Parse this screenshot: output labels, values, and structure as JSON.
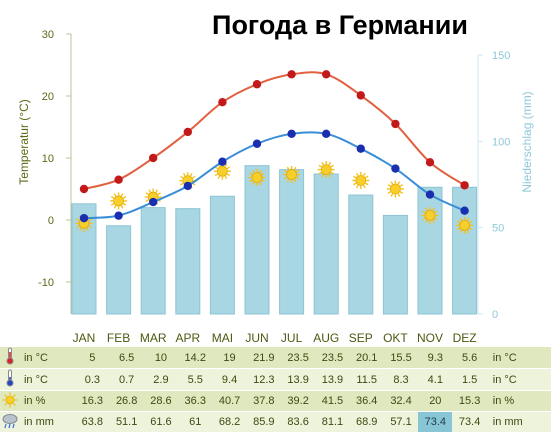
{
  "title": "Погода в Германии",
  "chart_data": {
    "type": "line",
    "title": "Погода в Германии",
    "categories": [
      "JAN",
      "FEB",
      "MAR",
      "APR",
      "MAI",
      "JUN",
      "JUL",
      "AUG",
      "SEP",
      "OKT",
      "NOV",
      "DEZ"
    ],
    "y_left_label": "Temperatur (°C)",
    "y_left_range": [
      -15,
      30
    ],
    "y_left_ticks": [
      "30",
      "20",
      "10",
      "0",
      "-10"
    ],
    "y_right_label": "Niederschlag (mm)",
    "y_right_range": [
      0,
      150
    ],
    "y_right_ticks": [
      "150",
      "100",
      "50",
      "0"
    ],
    "series": [
      {
        "kind": "line",
        "unit": "°C",
        "color": "#e06040",
        "values": [
          5,
          6.5,
          10,
          14.2,
          19,
          21.9,
          23.5,
          23.5,
          20.1,
          15.5,
          9.3,
          5.6
        ]
      },
      {
        "kind": "line",
        "unit": "°C",
        "color": "#3a8ed8",
        "values": [
          0.3,
          0.7,
          2.9,
          5.5,
          9.4,
          12.3,
          13.9,
          13.9,
          11.5,
          8.3,
          4.1,
          1.5
        ]
      },
      {
        "kind": "sun",
        "unit": "%",
        "values": [
          16.3,
          26.8,
          28.6,
          36.3,
          40.7,
          37.8,
          39.2,
          41.5,
          36.4,
          32.4,
          20,
          15.3
        ]
      },
      {
        "kind": "bar",
        "unit": "mm",
        "color": "#a9d6e3",
        "values": [
          63.8,
          51.1,
          61.6,
          61,
          68.2,
          85.9,
          83.6,
          81.1,
          68.9,
          57.1,
          73.4,
          73.4
        ]
      }
    ],
    "grid": false
  },
  "table": {
    "rows": [
      {
        "icon": "thermometer-hot-icon",
        "label": "in °C",
        "unit": "in °C",
        "values": [
          "5",
          "6.5",
          "10",
          "14.2",
          "19",
          "21.9",
          "23.5",
          "23.5",
          "20.1",
          "15.5",
          "9.3",
          "5.6"
        ]
      },
      {
        "icon": "thermometer-cold-icon",
        "label": "in °C",
        "unit": "in °C",
        "values": [
          "0.3",
          "0.7",
          "2.9",
          "5.5",
          "9.4",
          "12.3",
          "13.9",
          "13.9",
          "11.5",
          "8.3",
          "4.1",
          "1.5"
        ]
      },
      {
        "icon": "sun-icon",
        "label": "in %",
        "unit": "in %",
        "values": [
          "16.3",
          "26.8",
          "28.6",
          "36.3",
          "40.7",
          "37.8",
          "39.2",
          "41.5",
          "36.4",
          "32.4",
          "20",
          "15.3"
        ]
      },
      {
        "icon": "rain-cloud-icon",
        "label": "in mm",
        "unit": "in mm",
        "values": [
          "63.8",
          "51.1",
          "61.6",
          "61",
          "68.2",
          "85.9",
          "83.6",
          "81.1",
          "68.9",
          "57.1",
          "73.4",
          "73.4"
        ]
      }
    ]
  },
  "colors": {
    "hot": "#e06040",
    "cold": "#3a8ed8",
    "bar": "#a9d6e3",
    "axis_left": "#5a6a14",
    "axis_right": "#8fc8d8",
    "highlight": "#88c6d6"
  }
}
